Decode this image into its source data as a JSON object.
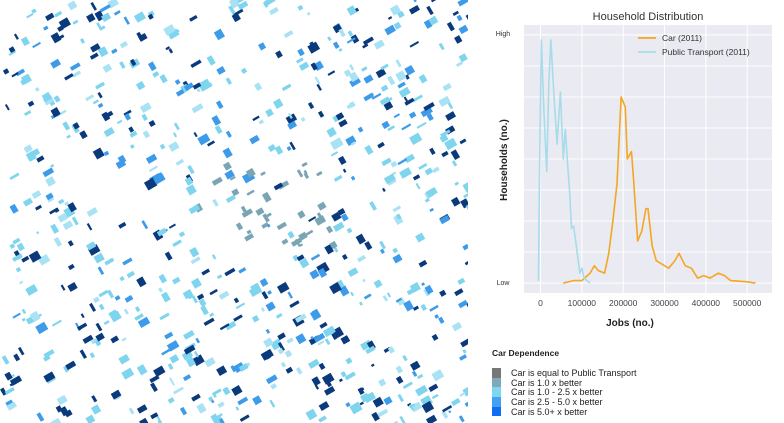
{
  "chart_data": {
    "type": "line",
    "title": "Household Distribution",
    "xlabel": "Jobs (no.)",
    "ylabel": "Households (no.)",
    "xlim": [
      -40000,
      560000
    ],
    "ylim": [
      -0.04,
      1.04
    ],
    "xticks": [
      0,
      100000,
      200000,
      300000,
      400000,
      500000
    ],
    "xtick_labels": [
      "0",
      "100000",
      "200000",
      "300000",
      "400000",
      "500000"
    ],
    "ytick_labels": {
      "low": "Low",
      "high": "High"
    },
    "grid": true,
    "legend_position": "top-right",
    "series": [
      {
        "name": "Car (2011)",
        "color": "#f5a623",
        "x": [
          55000,
          80000,
          100000,
          120000,
          130000,
          140000,
          155000,
          165000,
          175000,
          185000,
          195000,
          200000,
          205000,
          210000,
          220000,
          225000,
          235000,
          245000,
          255000,
          260000,
          270000,
          280000,
          300000,
          310000,
          325000,
          335000,
          350000,
          365000,
          380000,
          395000,
          410000,
          430000,
          445000,
          460000,
          500000,
          520000
        ],
        "y": [
          0,
          0.01,
          0.01,
          0.04,
          0.07,
          0.05,
          0.04,
          0.12,
          0.25,
          0.4,
          0.75,
          0.73,
          0.71,
          0.5,
          0.53,
          0.42,
          0.17,
          0.21,
          0.3,
          0.3,
          0.15,
          0.09,
          0.07,
          0.06,
          0.09,
          0.12,
          0.07,
          0.06,
          0.02,
          0.03,
          0.02,
          0.04,
          0.03,
          0.01,
          0.005,
          0
        ]
      },
      {
        "name": "Public Transport (2011)",
        "color": "#a8dce8",
        "x": [
          -5000,
          -2000,
          2000,
          8000,
          15000,
          20000,
          25000,
          32000,
          40000,
          48000,
          55000,
          60000,
          65000,
          70000,
          75000,
          80000,
          85000,
          95000,
          100000,
          105000,
          120000
        ],
        "y": [
          0.01,
          0.5,
          0.98,
          0.7,
          0.45,
          0.8,
          0.98,
          0.77,
          0.56,
          0.77,
          0.5,
          0.62,
          0.49,
          0.38,
          0.22,
          0.23,
          0.17,
          0.04,
          0.06,
          0.02,
          0
        ]
      }
    ]
  },
  "legend": {
    "title": "Car Dependence",
    "items": [
      {
        "label": "Car is equal to Public Transport",
        "color": "#777777"
      },
      {
        "label": "Car is 1.0 x better",
        "color": "#7fa9b7"
      },
      {
        "label": "Car is 1.0 - 2.5 x better",
        "color": "#80d6f0"
      },
      {
        "label": "Car is 2.5 - 5.0 x better",
        "color": "#42a2f2"
      },
      {
        "label": "Car is 5.0+ x better",
        "color": "#0f6ff2"
      }
    ]
  },
  "map_colors": [
    "#0b3a7c",
    "#7fd4ee",
    "#3d9be9",
    "#7aa5b4",
    "#a9e2f4"
  ]
}
